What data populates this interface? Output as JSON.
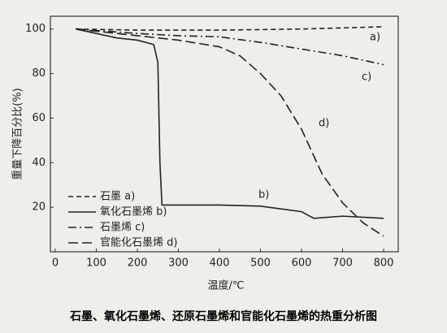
{
  "chart_data": {
    "type": "line",
    "title": "石墨、氧化石墨烯、还原石墨烯和官能化石墨烯的热重分析图",
    "x_label": "温度/℃",
    "y_label": "重量下降百分比(%)",
    "xlim": [
      0,
      800
    ],
    "xticks": [
      0,
      100,
      200,
      300,
      400,
      500,
      600,
      700,
      800
    ],
    "ylim": [
      0,
      105
    ],
    "yticks": [
      20,
      40,
      60,
      80,
      100
    ],
    "legend": "lower left",
    "series": [
      {
        "name": "石墨 a)",
        "color": "#222222",
        "dash": "dashed",
        "annotation": "a)",
        "x": [
          50,
          200,
          400,
          600,
          800
        ],
        "values": [
          100,
          99.5,
          99.5,
          100,
          101
        ]
      },
      {
        "name": "氧化石墨烯 b)",
        "color": "#222222",
        "dash": "solid",
        "annotation": "b)",
        "x": [
          50,
          100,
          150,
          200,
          240,
          250,
          255,
          260,
          400,
          500,
          600,
          630,
          700,
          800
        ],
        "values": [
          100,
          98,
          96,
          95,
          93,
          85,
          40,
          21,
          21,
          20.5,
          18,
          15,
          16,
          15
        ]
      },
      {
        "name": "石墨烯 c)",
        "color": "#222222",
        "dash": "dashdot",
        "annotation": "c)",
        "x": [
          50,
          200,
          300,
          400,
          500,
          600,
          700,
          800
        ],
        "values": [
          100,
          98,
          97,
          96.5,
          94,
          91,
          88,
          84
        ]
      },
      {
        "name": "官能化石墨烯 d)",
        "color": "#222222",
        "dash": "longdash",
        "annotation": "d)",
        "x": [
          50,
          200,
          300,
          400,
          450,
          500,
          550,
          600,
          650,
          700,
          750,
          800
        ],
        "values": [
          100,
          97,
          95,
          92,
          88,
          80,
          70,
          55,
          35,
          22,
          13,
          7
        ]
      }
    ]
  }
}
